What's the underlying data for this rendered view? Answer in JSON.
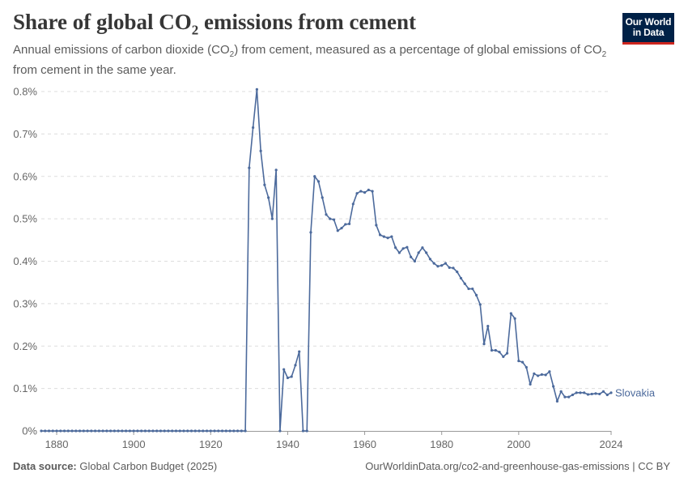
{
  "header": {
    "title_main": "Share of global CO",
    "title_sub": "2",
    "title_end": " emissions from cement",
    "subtitle_a": "Annual emissions of carbon dioxide (CO",
    "subtitle_b": "2",
    "subtitle_c": ") from cement, measured as a percentage of global emissions of CO",
    "subtitle_d": "2",
    "subtitle_e": " from cement in the same year."
  },
  "logo": {
    "line1": "Our World",
    "line2": "in Data"
  },
  "footer": {
    "source_label": "Data source:",
    "source_value": " Global Carbon Budget (2025)",
    "right": "OurWorldinData.org/co2-and-greenhouse-gas-emissions | CC BY"
  },
  "colors": {
    "series": "#4c6a9c",
    "grid": "#dddddd",
    "axis": "#999999"
  },
  "chart_data": {
    "type": "line",
    "title": "Share of global CO₂ emissions from cement",
    "xlabel": "",
    "ylabel": "",
    "xlim": [
      1876,
      2024
    ],
    "ylim": [
      0,
      0.8
    ],
    "x_ticks": [
      1880,
      1900,
      1920,
      1940,
      1960,
      1980,
      2000,
      2024
    ],
    "y_ticks": [
      0,
      0.1,
      0.2,
      0.3,
      0.4,
      0.5,
      0.6,
      0.7,
      0.8
    ],
    "y_tick_labels": [
      "0%",
      "0.1%",
      "0.2%",
      "0.3%",
      "0.4%",
      "0.5%",
      "0.6%",
      "0.7%",
      "0.8%"
    ],
    "grid": true,
    "series": [
      {
        "name": "Slovakia",
        "x": [
          1876,
          1877,
          1878,
          1879,
          1880,
          1881,
          1882,
          1883,
          1884,
          1885,
          1886,
          1887,
          1888,
          1889,
          1890,
          1891,
          1892,
          1893,
          1894,
          1895,
          1896,
          1897,
          1898,
          1899,
          1900,
          1901,
          1902,
          1903,
          1904,
          1905,
          1906,
          1907,
          1908,
          1909,
          1910,
          1911,
          1912,
          1913,
          1914,
          1915,
          1916,
          1917,
          1918,
          1919,
          1920,
          1921,
          1922,
          1923,
          1924,
          1925,
          1926,
          1927,
          1928,
          1929,
          1930,
          1931,
          1932,
          1933,
          1934,
          1935,
          1936,
          1937,
          1938,
          1939,
          1940,
          1941,
          1942,
          1943,
          1944,
          1945,
          1946,
          1947,
          1948,
          1949,
          1950,
          1951,
          1952,
          1953,
          1954,
          1955,
          1956,
          1957,
          1958,
          1959,
          1960,
          1961,
          1962,
          1963,
          1964,
          1965,
          1966,
          1967,
          1968,
          1969,
          1970,
          1971,
          1972,
          1973,
          1974,
          1975,
          1976,
          1977,
          1978,
          1979,
          1980,
          1981,
          1982,
          1983,
          1984,
          1985,
          1986,
          1987,
          1988,
          1989,
          1990,
          1991,
          1992,
          1993,
          1994,
          1995,
          1996,
          1997,
          1998,
          1999,
          2000,
          2001,
          2002,
          2003,
          2004,
          2005,
          2006,
          2007,
          2008,
          2009,
          2010,
          2011,
          2012,
          2013,
          2014,
          2015,
          2016,
          2017,
          2018,
          2019,
          2020,
          2021,
          2022,
          2023,
          2024
        ],
        "values": [
          0,
          0,
          0,
          0,
          0,
          0,
          0,
          0,
          0,
          0,
          0,
          0,
          0,
          0,
          0,
          0,
          0,
          0,
          0,
          0,
          0,
          0,
          0,
          0,
          0,
          0,
          0,
          0,
          0,
          0,
          0,
          0,
          0,
          0,
          0,
          0,
          0,
          0,
          0,
          0,
          0,
          0,
          0,
          0,
          0,
          0,
          0,
          0,
          0,
          0,
          0,
          0,
          0,
          0,
          0.62,
          0.715,
          0.805,
          0.66,
          0.58,
          0.55,
          0.5,
          0.615,
          0,
          0.145,
          0.125,
          0.128,
          0.155,
          0.187,
          0,
          0,
          0.468,
          0.6,
          0.588,
          0.55,
          0.51,
          0.5,
          0.498,
          0.472,
          0.478,
          0.487,
          0.488,
          0.535,
          0.56,
          0.565,
          0.562,
          0.568,
          0.565,
          0.485,
          0.462,
          0.458,
          0.455,
          0.458,
          0.432,
          0.42,
          0.43,
          0.433,
          0.41,
          0.4,
          0.42,
          0.432,
          0.42,
          0.405,
          0.395,
          0.388,
          0.39,
          0.395,
          0.385,
          0.384,
          0.375,
          0.36,
          0.347,
          0.335,
          0.335,
          0.32,
          0.298,
          0.205,
          0.247,
          0.19,
          0.19,
          0.186,
          0.175,
          0.183,
          0.277,
          0.265,
          0.165,
          0.162,
          0.15,
          0.11,
          0.135,
          0.13,
          0.133,
          0.132,
          0.14,
          0.105,
          0.07,
          0.093,
          0.08,
          0.08,
          0.085,
          0.09,
          0.09,
          0.09,
          0.086,
          0.087,
          0.088,
          0.087,
          0.093,
          0.085,
          0.09
        ]
      }
    ]
  }
}
